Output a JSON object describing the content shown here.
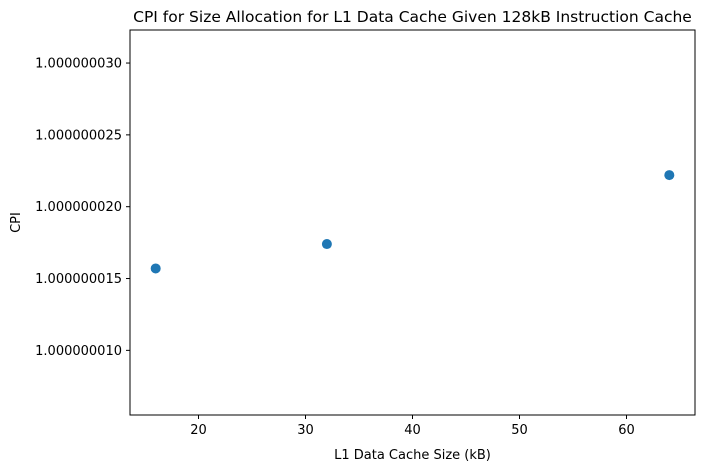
{
  "chart_data": {
    "type": "scatter",
    "title": "CPI for Size Allocation for L1 Data Cache Given 128kB Instruction Cache",
    "xlabel": "L1 Data Cache Size (kB)",
    "ylabel": "CPI",
    "x": [
      16,
      32,
      64
    ],
    "y": [
      1.0000000157,
      1.0000000174,
      1.0000000222
    ],
    "xlim": [
      13.6,
      66.4
    ],
    "ylim": [
      1.0000000055,
      1.0000000323
    ],
    "xticks": [
      20,
      30,
      40,
      50,
      60
    ],
    "xtick_labels": [
      "20",
      "30",
      "40",
      "50",
      "60"
    ],
    "yticks": [
      1.00000001,
      1.000000015,
      1.00000002,
      1.000000025,
      1.00000003
    ],
    "ytick_labels": [
      "1.000000010",
      "1.000000015",
      "1.000000020",
      "1.000000025",
      "1.000000030"
    ],
    "marker_color": "#1f77b4",
    "grid": false,
    "legend": false
  }
}
